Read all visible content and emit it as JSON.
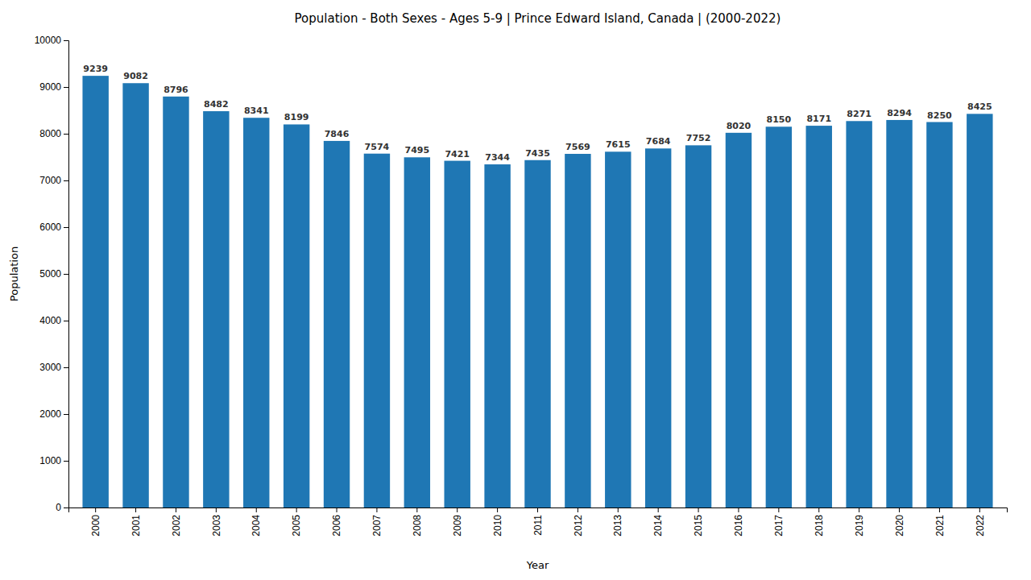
{
  "chart_data": {
    "type": "bar",
    "title": "Population - Both Sexes - Ages 5-9 | Prince Edward Island, Canada |  (2000-2022)",
    "x_label": "Year",
    "y_label": "Population",
    "categories": [
      "2000",
      "2001",
      "2002",
      "2003",
      "2004",
      "2005",
      "2006",
      "2007",
      "2008",
      "2009",
      "2010",
      "2011",
      "2012",
      "2013",
      "2014",
      "2015",
      "2016",
      "2017",
      "2018",
      "2019",
      "2020",
      "2021",
      "2022"
    ],
    "values": [
      9239,
      9082,
      8796,
      8482,
      8341,
      8199,
      7846,
      7574,
      7495,
      7421,
      7344,
      7435,
      7569,
      7615,
      7684,
      7752,
      8020,
      8150,
      8171,
      8271,
      8294,
      8250,
      8425
    ],
    "ylim": [
      0,
      10000
    ],
    "yticks": [
      0,
      1000,
      2000,
      3000,
      4000,
      5000,
      6000,
      7000,
      8000,
      9000,
      10000
    ],
    "grid": false,
    "data_labels": true
  }
}
